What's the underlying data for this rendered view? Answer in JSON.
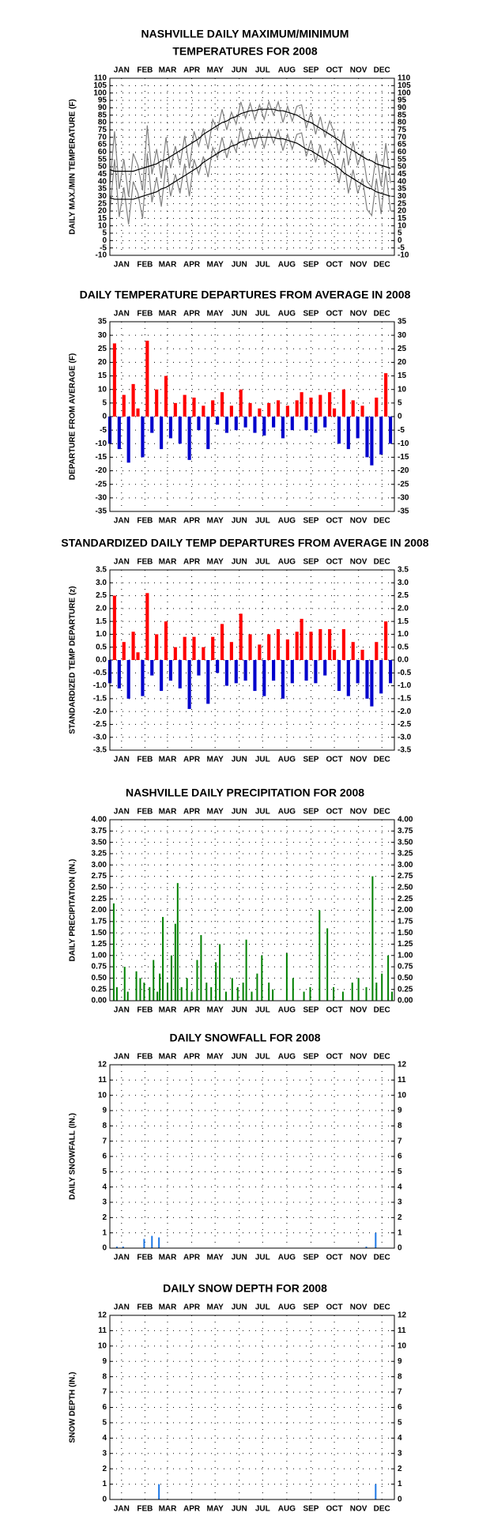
{
  "chart_data": [
    {
      "type": "line",
      "title": [
        "NASHVILLE DAILY MAXIMUM/MINIMUM",
        "TEMPERATURES FOR 2008"
      ],
      "y_label": "DAILY MAX./MIN TEMPERATURE (F)",
      "xlim": [
        1,
        366
      ],
      "xticks": [
        {
          "value": 16,
          "label": "JAN"
        },
        {
          "value": 46,
          "label": "FEB"
        },
        {
          "value": 75,
          "label": "MAR"
        },
        {
          "value": 106,
          "label": "APR"
        },
        {
          "value": 136,
          "label": "MAY"
        },
        {
          "value": 167,
          "label": "JUN"
        },
        {
          "value": 197,
          "label": "JUL"
        },
        {
          "value": 228,
          "label": "AUG"
        },
        {
          "value": 259,
          "label": "SEP"
        },
        {
          "value": 289,
          "label": "OCT"
        },
        {
          "value": 320,
          "label": "NOV"
        },
        {
          "value": 350,
          "label": "DEC"
        }
      ],
      "ylim": [
        -10,
        110
      ],
      "yticks": [
        -10,
        -5,
        0,
        5,
        10,
        15,
        20,
        25,
        30,
        35,
        40,
        45,
        50,
        55,
        60,
        65,
        70,
        75,
        80,
        85,
        90,
        95,
        100,
        105,
        110
      ],
      "grid": true,
      "x": [
        1,
        7,
        13,
        19,
        25,
        31,
        37,
        43,
        49,
        55,
        61,
        67,
        73,
        79,
        85,
        91,
        97,
        103,
        109,
        115,
        121,
        127,
        133,
        139,
        145,
        151,
        157,
        163,
        169,
        175,
        181,
        187,
        193,
        199,
        205,
        211,
        217,
        223,
        229,
        235,
        241,
        247,
        253,
        259,
        265,
        271,
        277,
        283,
        289,
        295,
        301,
        307,
        313,
        319,
        325,
        331,
        337,
        343,
        349,
        355,
        361
      ],
      "series": [
        {
          "color": "#808080",
          "values": [
            38,
            74,
            35,
            55,
            30,
            59,
            51,
            34,
            78,
            45,
            62,
            42,
            70,
            49,
            64,
            51,
            71,
            49,
            74,
            64,
            76,
            62,
            82,
            75,
            89,
            75,
            87,
            79,
            94,
            83,
            93,
            82,
            92,
            82,
            94,
            85,
            94,
            80,
            91,
            81,
            91,
            92,
            76,
            87,
            72,
            84,
            70,
            81,
            73,
            58,
            75,
            51,
            67,
            51,
            61,
            40,
            36,
            59,
            37,
            66,
            39
          ]
        },
        {
          "color": "#808080",
          "values": [
            19,
            55,
            16,
            36,
            11,
            40,
            32,
            15,
            59,
            26,
            43,
            23,
            51,
            30,
            45,
            32,
            52,
            30,
            55,
            45,
            57,
            43,
            63,
            56,
            70,
            56,
            68,
            60,
            77,
            64,
            74,
            63,
            73,
            63,
            75,
            66,
            75,
            61,
            72,
            62,
            72,
            73,
            57,
            68,
            53,
            65,
            51,
            62,
            54,
            39,
            56,
            32,
            48,
            32,
            42,
            21,
            17,
            42,
            18,
            47,
            20
          ]
        },
        {
          "color": "#000000",
          "values": [
            48,
            47,
            47,
            47,
            47,
            47,
            48,
            49,
            50,
            51,
            52,
            54,
            55,
            57,
            59,
            61,
            63,
            65,
            67,
            69,
            72,
            74,
            76,
            78,
            80,
            81,
            83,
            84,
            86,
            87,
            88,
            88,
            89,
            89,
            89,
            89,
            88,
            88,
            87,
            86,
            85,
            83,
            81,
            80,
            78,
            76,
            74,
            72,
            70,
            68,
            65,
            63,
            61,
            59,
            57,
            55,
            54,
            52,
            51,
            50,
            49
          ]
        },
        {
          "color": "#000000",
          "values": [
            29,
            28,
            28,
            28,
            28,
            28,
            29,
            30,
            31,
            32,
            33,
            35,
            36,
            38,
            40,
            42,
            44,
            46,
            48,
            50,
            53,
            55,
            57,
            59,
            61,
            62,
            64,
            65,
            67,
            68,
            69,
            69,
            70,
            70,
            70,
            70,
            69,
            69,
            68,
            67,
            66,
            64,
            62,
            61,
            59,
            57,
            55,
            53,
            51,
            49,
            46,
            44,
            42,
            40,
            38,
            36,
            35,
            33,
            32,
            31,
            30
          ]
        }
      ]
    },
    {
      "type": "bar",
      "title": [
        "DAILY TEMPERATURE DEPARTURES FROM AVERAGE IN 2008"
      ],
      "y_label": "DEPARTURE FROM AVERAGE (F)",
      "xlim": [
        1,
        366
      ],
      "xticks": [
        {
          "value": 16,
          "label": "JAN"
        },
        {
          "value": 46,
          "label": "FEB"
        },
        {
          "value": 75,
          "label": "MAR"
        },
        {
          "value": 106,
          "label": "APR"
        },
        {
          "value": 136,
          "label": "MAY"
        },
        {
          "value": 167,
          "label": "JUN"
        },
        {
          "value": 197,
          "label": "JUL"
        },
        {
          "value": 228,
          "label": "AUG"
        },
        {
          "value": 259,
          "label": "SEP"
        },
        {
          "value": 289,
          "label": "OCT"
        },
        {
          "value": 320,
          "label": "NOV"
        },
        {
          "value": 350,
          "label": "DEC"
        }
      ],
      "ylim": [
        -35,
        35
      ],
      "yticks": [
        -35,
        -30,
        -25,
        -20,
        -15,
        -10,
        -5,
        0,
        5,
        10,
        15,
        20,
        25,
        30,
        35
      ],
      "grid": true,
      "positive_color": "#ff0000",
      "negative_color": "#0000cc",
      "x": [
        1,
        7,
        13,
        19,
        25,
        31,
        37,
        43,
        49,
        55,
        61,
        67,
        73,
        79,
        85,
        91,
        97,
        103,
        109,
        115,
        121,
        127,
        133,
        139,
        145,
        151,
        157,
        163,
        169,
        175,
        181,
        187,
        193,
        199,
        205,
        211,
        217,
        223,
        229,
        235,
        241,
        247,
        253,
        259,
        265,
        271,
        277,
        283,
        289,
        295,
        301,
        307,
        313,
        319,
        325,
        331,
        337,
        343,
        349,
        355,
        361
      ],
      "values": [
        -10,
        27,
        -12,
        8,
        -17,
        12,
        3,
        -15,
        28,
        -6,
        10,
        -12,
        15,
        -8,
        5,
        -10,
        8,
        -16,
        7,
        -5,
        4,
        -12,
        6,
        -3,
        9,
        -6,
        4,
        -5,
        10,
        -4,
        5,
        -6,
        3,
        -7,
        5,
        -4,
        6,
        -8,
        4,
        -5,
        6,
        9,
        -5,
        7,
        -6,
        8,
        -4,
        9,
        3,
        -10,
        10,
        -12,
        6,
        -8,
        4,
        -15,
        -18,
        7,
        -14,
        16,
        -10
      ]
    },
    {
      "type": "bar",
      "title": [
        "STANDARDIZED DAILY TEMP DEPARTURES FROM AVERAGE IN 2008"
      ],
      "y_label": "STANDARDIZED TEMP DEPARTURE (z)",
      "xlim": [
        1,
        366
      ],
      "xticks": [
        {
          "value": 16,
          "label": "JAN"
        },
        {
          "value": 46,
          "label": "FEB"
        },
        {
          "value": 75,
          "label": "MAR"
        },
        {
          "value": 106,
          "label": "APR"
        },
        {
          "value": 136,
          "label": "MAY"
        },
        {
          "value": 167,
          "label": "JUN"
        },
        {
          "value": 197,
          "label": "JUL"
        },
        {
          "value": 228,
          "label": "AUG"
        },
        {
          "value": 259,
          "label": "SEP"
        },
        {
          "value": 289,
          "label": "OCT"
        },
        {
          "value": 320,
          "label": "NOV"
        },
        {
          "value": 350,
          "label": "DEC"
        }
      ],
      "ylim": [
        -3.5,
        3.5
      ],
      "yticks": [
        -3.5,
        {
          "value": -3,
          "label": "-3.0"
        },
        -2.5,
        {
          "value": -2,
          "label": "-2.0"
        },
        -1.5,
        {
          "value": -1,
          "label": "-1.0"
        },
        -0.5,
        {
          "value": 0,
          "label": "0.0"
        },
        0.5,
        {
          "value": 1,
          "label": "1.0"
        },
        1.5,
        {
          "value": 2,
          "label": "2.0"
        },
        2.5,
        {
          "value": 3,
          "label": "3.0"
        },
        3.5
      ],
      "grid": true,
      "positive_color": "#ff0000",
      "negative_color": "#0000cc",
      "x": [
        1,
        7,
        13,
        19,
        25,
        31,
        37,
        43,
        49,
        55,
        61,
        67,
        73,
        79,
        85,
        91,
        97,
        103,
        109,
        115,
        121,
        127,
        133,
        139,
        145,
        151,
        157,
        163,
        169,
        175,
        181,
        187,
        193,
        199,
        205,
        211,
        217,
        223,
        229,
        235,
        241,
        247,
        253,
        259,
        265,
        271,
        277,
        283,
        289,
        295,
        301,
        307,
        313,
        319,
        325,
        331,
        337,
        343,
        349,
        355,
        361
      ],
      "values": [
        -0.9,
        2.5,
        -1.1,
        0.7,
        -1.5,
        1.1,
        0.3,
        -1.4,
        2.6,
        -0.6,
        1.0,
        -1.2,
        1.5,
        -0.8,
        0.5,
        -1.1,
        0.9,
        -1.9,
        0.9,
        -0.6,
        0.5,
        -1.7,
        0.9,
        -0.5,
        1.4,
        -1.0,
        0.7,
        -0.9,
        1.8,
        -0.8,
        1.0,
        -1.2,
        0.6,
        -1.4,
        1.0,
        -0.8,
        1.2,
        -1.5,
        0.8,
        -0.9,
        1.1,
        1.6,
        -0.8,
        1.1,
        -0.9,
        1.2,
        -0.6,
        1.2,
        0.4,
        -1.2,
        1.2,
        -1.4,
        0.7,
        -0.9,
        0.4,
        -1.5,
        -1.8,
        0.7,
        -1.3,
        1.5,
        -0.9
      ]
    },
    {
      "type": "bar",
      "title": [
        "NASHVILLE DAILY PRECIPITATION FOR 2008"
      ],
      "y_label": "DAILY PRECIPITATION (IN.)",
      "xlim": [
        1,
        366
      ],
      "xticks": [
        {
          "value": 16,
          "label": "JAN"
        },
        {
          "value": 46,
          "label": "FEB"
        },
        {
          "value": 75,
          "label": "MAR"
        },
        {
          "value": 106,
          "label": "APR"
        },
        {
          "value": 136,
          "label": "MAY"
        },
        {
          "value": 167,
          "label": "JUN"
        },
        {
          "value": 197,
          "label": "JUL"
        },
        {
          "value": 228,
          "label": "AUG"
        },
        {
          "value": 259,
          "label": "SEP"
        },
        {
          "value": 289,
          "label": "OCT"
        },
        {
          "value": 320,
          "label": "NOV"
        },
        {
          "value": 350,
          "label": "DEC"
        }
      ],
      "ylim": [
        0,
        4
      ],
      "yticks": [
        {
          "value": 0,
          "label": "0.00"
        },
        0.25,
        {
          "value": 0.5,
          "label": "0.50"
        },
        0.75,
        {
          "value": 1,
          "label": "1.00"
        },
        1.25,
        {
          "value": 1.5,
          "label": "1.50"
        },
        1.75,
        {
          "value": 2,
          "label": "2.00"
        },
        2.25,
        {
          "value": 2.5,
          "label": "2.50"
        },
        2.75,
        {
          "value": 3,
          "label": "3.00"
        },
        3.25,
        {
          "value": 3.5,
          "label": "3.50"
        },
        3.75,
        {
          "value": 4,
          "label": "4.00"
        }
      ],
      "grid": true,
      "color": "#008000",
      "x": [
        6,
        10,
        20,
        24,
        35,
        40,
        45,
        52,
        57,
        62,
        65,
        69,
        75,
        80,
        85,
        88,
        93,
        100,
        106,
        113,
        118,
        125,
        131,
        137,
        142,
        150,
        158,
        165,
        172,
        176,
        183,
        190,
        196,
        205,
        210,
        228,
        236,
        250,
        258,
        270,
        280,
        288,
        300,
        312,
        320,
        330,
        338,
        343,
        350,
        358,
        363
      ],
      "values": [
        2.15,
        0.3,
        0.75,
        0.2,
        0.65,
        0.5,
        0.4,
        0.3,
        0.9,
        0.2,
        0.6,
        1.85,
        0.4,
        1.0,
        1.7,
        2.6,
        0.3,
        0.5,
        0.2,
        0.9,
        1.45,
        0.4,
        0.3,
        0.85,
        1.25,
        0.2,
        0.5,
        0.3,
        0.4,
        1.35,
        0.2,
        0.6,
        1.0,
        0.4,
        0.25,
        1.05,
        0.5,
        0.2,
        0.3,
        2.0,
        1.6,
        0.3,
        0.2,
        0.4,
        0.5,
        0.3,
        2.75,
        0.4,
        0.6,
        1.0,
        0.2
      ]
    },
    {
      "type": "bar",
      "title": [
        "DAILY SNOWFALL FOR 2008"
      ],
      "y_label": "DAILY SNOWFALL (IN.)",
      "xlim": [
        1,
        366
      ],
      "xticks": [
        {
          "value": 16,
          "label": "JAN"
        },
        {
          "value": 46,
          "label": "FEB"
        },
        {
          "value": 75,
          "label": "MAR"
        },
        {
          "value": 106,
          "label": "APR"
        },
        {
          "value": 136,
          "label": "MAY"
        },
        {
          "value": 167,
          "label": "JUN"
        },
        {
          "value": 197,
          "label": "JUL"
        },
        {
          "value": 228,
          "label": "AUG"
        },
        {
          "value": 259,
          "label": "SEP"
        },
        {
          "value": 289,
          "label": "OCT"
        },
        {
          "value": 320,
          "label": "NOV"
        },
        {
          "value": 350,
          "label": "DEC"
        }
      ],
      "ylim": [
        0,
        12
      ],
      "yticks": [
        0,
        1,
        2,
        3,
        4,
        5,
        6,
        7,
        8,
        9,
        10,
        11,
        12
      ],
      "grid": true,
      "color": "#1e78e6",
      "x": [
        10,
        18,
        45,
        55,
        64,
        330,
        342
      ],
      "values": [
        0.1,
        0.1,
        0.6,
        0.8,
        0.7,
        0.1,
        1.0
      ]
    },
    {
      "type": "bar",
      "title": [
        "DAILY SNOW DEPTH FOR 2008"
      ],
      "y_label": "SNOW DEPTH (IN.)",
      "xlim": [
        1,
        366
      ],
      "xticks": [
        {
          "value": 16,
          "label": "JAN"
        },
        {
          "value": 46,
          "label": "FEB"
        },
        {
          "value": 75,
          "label": "MAR"
        },
        {
          "value": 106,
          "label": "APR"
        },
        {
          "value": 136,
          "label": "MAY"
        },
        {
          "value": 167,
          "label": "JUN"
        },
        {
          "value": 197,
          "label": "JUL"
        },
        {
          "value": 228,
          "label": "AUG"
        },
        {
          "value": 259,
          "label": "SEP"
        },
        {
          "value": 289,
          "label": "OCT"
        },
        {
          "value": 320,
          "label": "NOV"
        },
        {
          "value": 350,
          "label": "DEC"
        }
      ],
      "ylim": [
        0,
        12
      ],
      "yticks": [
        0,
        1,
        2,
        3,
        4,
        5,
        6,
        7,
        8,
        9,
        10,
        11,
        12
      ],
      "grid": true,
      "color": "#1e78e6",
      "x": [
        64,
        342
      ],
      "values": [
        1,
        1
      ]
    }
  ]
}
